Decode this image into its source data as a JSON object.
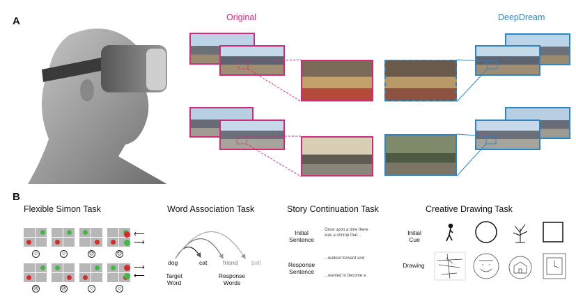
{
  "panel_a": {
    "letter": "A",
    "original_label": "Original",
    "deepdream_label": "DeepDream",
    "colors": {
      "original": "#d22b7a",
      "deepdream": "#2b86c5"
    }
  },
  "panel_b": {
    "letter": "B",
    "tasks": {
      "simon": {
        "title": "Flexible Simon Task",
        "faces_top": [
          "☺",
          "☺",
          "☹",
          "☹"
        ],
        "faces_bottom": [
          "☹",
          "☹",
          "☺",
          "☺"
        ]
      },
      "word": {
        "title": "Word Association Task",
        "words": {
          "dog": "dog",
          "cat": "cat",
          "friend": "friend",
          "ball": "ball"
        },
        "target_label": "Target\nWord",
        "response_label": "Response\nWords"
      },
      "story": {
        "title": "Story Continuation Task",
        "initial_label": "Initial\nSentence",
        "initial_text": "Once upon a time there\nwas a shrimp that...",
        "response_label": "Response\nSentence",
        "response_1": "...walked forward and",
        "response_2": "...wanted to become a"
      },
      "drawing": {
        "title": "Creative Drawing Task",
        "cue_label": "Initial\nCue",
        "drawing_label": "Drawing"
      }
    }
  }
}
